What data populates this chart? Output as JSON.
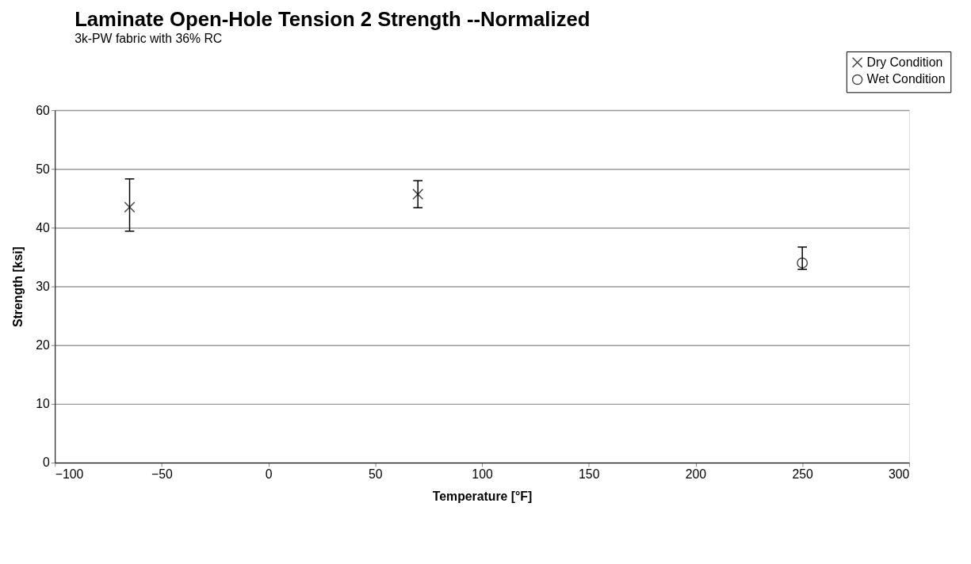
{
  "chart_data": {
    "type": "scatter",
    "title": "Laminate Open-Hole Tension 2 Strength --Normalized",
    "subtitle": "3k-PW fabric with 36% RC",
    "xlabel": "Temperature [°F]",
    "ylabel": "Strength  [ksi]",
    "series": [
      {
        "name": "Dry Condition",
        "color": "#000000",
        "marker": "cross",
        "x": [
          -65,
          70
        ],
        "values": [
          43.5,
          45.7
        ],
        "errors": [
          [
            39.4,
            48.3
          ],
          [
            43.4,
            48.0
          ]
        ]
      },
      {
        "name": "Wet Condition",
        "color": "#000000",
        "marker": "circle",
        "x": [
          250
        ],
        "values": [
          34.0
        ],
        "errors": [
          [
            32.9,
            36.7
          ]
        ]
      }
    ],
    "xlim": [
      -100,
      300
    ],
    "xticks": [
      -100,
      -50,
      0,
      50,
      100,
      150,
      200,
      250,
      300
    ],
    "ylim": [
      0,
      60
    ],
    "yticks": [
      0,
      10,
      20,
      30,
      40,
      50,
      60
    ],
    "grid": "y",
    "legend": "top right"
  }
}
